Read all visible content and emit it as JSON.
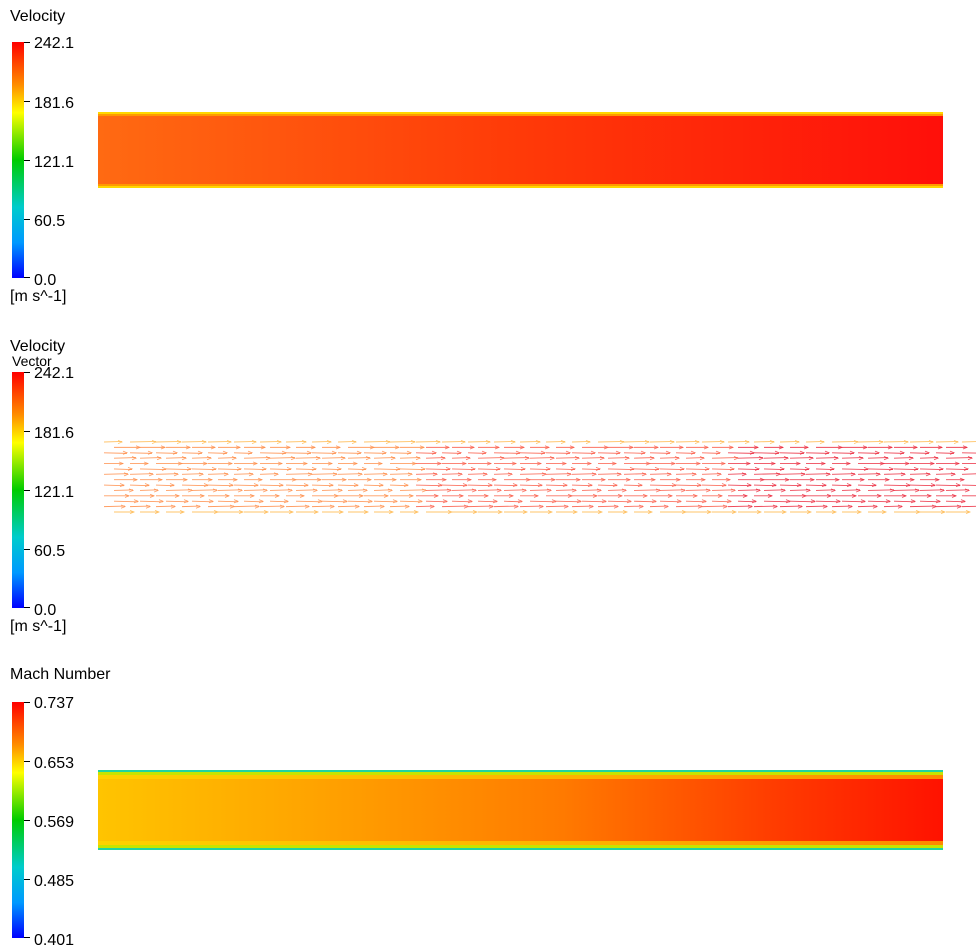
{
  "panels": [
    {
      "title": "Velocity",
      "subtitle": "",
      "legend_ticks": [
        "242.1",
        "181.6",
        "121.1",
        "60.5",
        "0.0"
      ],
      "unit": "[m s^-1]"
    },
    {
      "title": "Velocity",
      "subtitle": "Vector",
      "legend_ticks": [
        "242.1",
        "181.6",
        "121.1",
        "60.5",
        "0.0"
      ],
      "unit": "[m s^-1]"
    },
    {
      "title": "Mach Number",
      "subtitle": "",
      "legend_ticks": [
        "0.737",
        "0.653",
        "0.569",
        "0.485",
        "0.401"
      ],
      "unit": ""
    }
  ],
  "colormap": [
    "#ff0000",
    "#ff8c00",
    "#ffff00",
    "#00cc00",
    "#00cccc",
    "#0099ff",
    "#0000ff"
  ]
}
